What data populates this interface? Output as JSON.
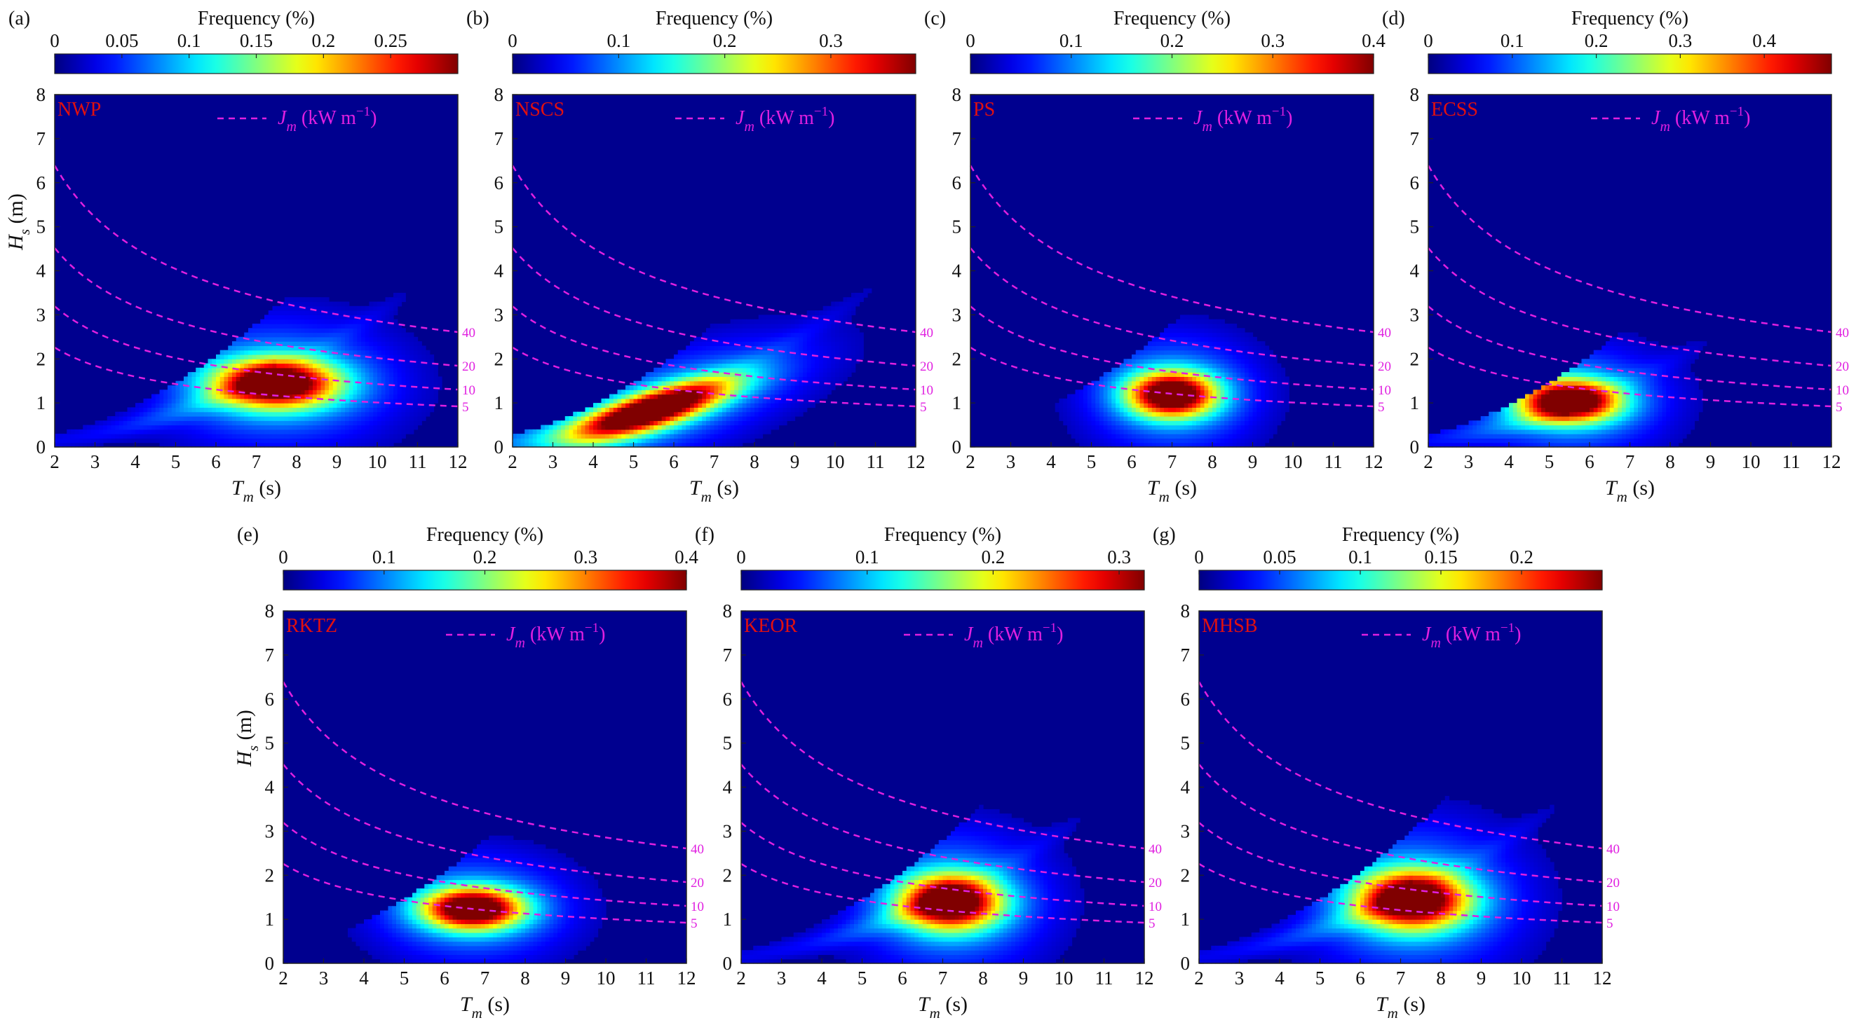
{
  "figure": {
    "colorbar_title": "Frequency (%)",
    "xlabel_main": "T",
    "xlabel_sub": "m",
    "xlabel_unit": " (s)",
    "ylabel_main": "H",
    "ylabel_sub": "s",
    "ylabel_unit": " (m)",
    "legend_main": "J",
    "legend_sub": "m",
    "legend_unit": " (kW m",
    "legend_sup": "−1",
    "legend_close": ")",
    "colors": {
      "name_label": "#e01010",
      "contour": "#e020e0",
      "background": "#00008f"
    }
  },
  "chart_data": [
    {
      "panel": "(a)",
      "name": "NWP",
      "type": "heatmap",
      "xlim": [
        2,
        12
      ],
      "ylim": [
        0,
        8
      ],
      "xticks": [
        2,
        3,
        4,
        5,
        6,
        7,
        8,
        9,
        10,
        11,
        12
      ],
      "yticks": [
        0,
        1,
        2,
        3,
        4,
        5,
        6,
        7,
        8
      ],
      "colorbar": {
        "max": 0.3,
        "ticks": [
          "0",
          "0.05",
          "0.1",
          "0.15",
          "0.2",
          "0.25"
        ]
      },
      "peak": {
        "tm": 7.5,
        "hs": 1.45,
        "freq": 0.29
      },
      "contours_kW_per_m": [
        5,
        10,
        20,
        40
      ],
      "show_ylabel": true
    },
    {
      "panel": "(b)",
      "name": "NSCS",
      "type": "heatmap",
      "xlim": [
        2,
        12
      ],
      "ylim": [
        0,
        8
      ],
      "xticks": [
        2,
        3,
        4,
        5,
        6,
        7,
        8,
        9,
        10,
        11,
        12
      ],
      "yticks": [
        0,
        1,
        2,
        3,
        4,
        5,
        6,
        7,
        8
      ],
      "colorbar": {
        "max": 0.38,
        "ticks": [
          "0",
          "0.1",
          "0.2",
          "0.3"
        ]
      },
      "peak": {
        "tm": 5.5,
        "hs": 0.85,
        "freq": 0.37
      },
      "contours_kW_per_m": [
        5,
        10,
        20,
        40
      ],
      "show_ylabel": false
    },
    {
      "panel": "(c)",
      "name": "PS",
      "type": "heatmap",
      "xlim": [
        2,
        12
      ],
      "ylim": [
        0,
        8
      ],
      "xticks": [
        2,
        3,
        4,
        5,
        6,
        7,
        8,
        9,
        10,
        11,
        12
      ],
      "yticks": [
        0,
        1,
        2,
        3,
        4,
        5,
        6,
        7,
        8
      ],
      "colorbar": {
        "max": 0.4,
        "ticks": [
          "0",
          "0.1",
          "0.2",
          "0.3",
          "0.4"
        ]
      },
      "peak": {
        "tm": 7.0,
        "hs": 1.2,
        "freq": 0.4
      },
      "contours_kW_per_m": [
        5,
        10,
        20,
        40
      ],
      "show_ylabel": false
    },
    {
      "panel": "(d)",
      "name": "ECSS",
      "type": "heatmap",
      "xlim": [
        2,
        12
      ],
      "ylim": [
        0,
        8
      ],
      "xticks": [
        2,
        3,
        4,
        5,
        6,
        7,
        8,
        9,
        10,
        11,
        12
      ],
      "yticks": [
        0,
        1,
        2,
        3,
        4,
        5,
        6,
        7,
        8
      ],
      "colorbar": {
        "max": 0.48,
        "ticks": [
          "0",
          "0.1",
          "0.2",
          "0.3",
          "0.4"
        ]
      },
      "peak": {
        "tm": 5.5,
        "hs": 1.05,
        "freq": 0.47
      },
      "contours_kW_per_m": [
        5,
        10,
        20,
        40
      ],
      "show_ylabel": false
    },
    {
      "panel": "(e)",
      "name": "RKTZ",
      "type": "heatmap",
      "xlim": [
        2,
        12
      ],
      "ylim": [
        0,
        8
      ],
      "xticks": [
        2,
        3,
        4,
        5,
        6,
        7,
        8,
        9,
        10,
        11,
        12
      ],
      "yticks": [
        0,
        1,
        2,
        3,
        4,
        5,
        6,
        7,
        8
      ],
      "colorbar": {
        "max": 0.4,
        "ticks": [
          "0",
          "0.1",
          "0.2",
          "0.3",
          "0.4"
        ]
      },
      "peak": {
        "tm": 6.7,
        "hs": 1.25,
        "freq": 0.4
      },
      "contours_kW_per_m": [
        5,
        10,
        20,
        40
      ],
      "show_ylabel": true
    },
    {
      "panel": "(f)",
      "name": "KEOR",
      "type": "heatmap",
      "xlim": [
        2,
        12
      ],
      "ylim": [
        0,
        8
      ],
      "xticks": [
        2,
        3,
        4,
        5,
        6,
        7,
        8,
        9,
        10,
        11,
        12
      ],
      "yticks": [
        0,
        1,
        2,
        3,
        4,
        5,
        6,
        7,
        8
      ],
      "colorbar": {
        "max": 0.32,
        "ticks": [
          "0",
          "0.1",
          "0.2",
          "0.3"
        ]
      },
      "peak": {
        "tm": 7.2,
        "hs": 1.4,
        "freq": 0.32
      },
      "contours_kW_per_m": [
        5,
        10,
        20,
        40
      ],
      "show_ylabel": false
    },
    {
      "panel": "(g)",
      "name": "MHSB",
      "type": "heatmap",
      "xlim": [
        2,
        12
      ],
      "ylim": [
        0,
        8
      ],
      "xticks": [
        2,
        3,
        4,
        5,
        6,
        7,
        8,
        9,
        10,
        11,
        12
      ],
      "yticks": [
        0,
        1,
        2,
        3,
        4,
        5,
        6,
        7,
        8
      ],
      "colorbar": {
        "max": 0.25,
        "ticks": [
          "0",
          "0.05",
          "0.1",
          "0.15",
          "0.2"
        ]
      },
      "peak": {
        "tm": 7.3,
        "hs": 1.45,
        "freq": 0.24
      },
      "contours_kW_per_m": [
        5,
        10,
        20,
        40
      ],
      "show_ylabel": false
    }
  ]
}
